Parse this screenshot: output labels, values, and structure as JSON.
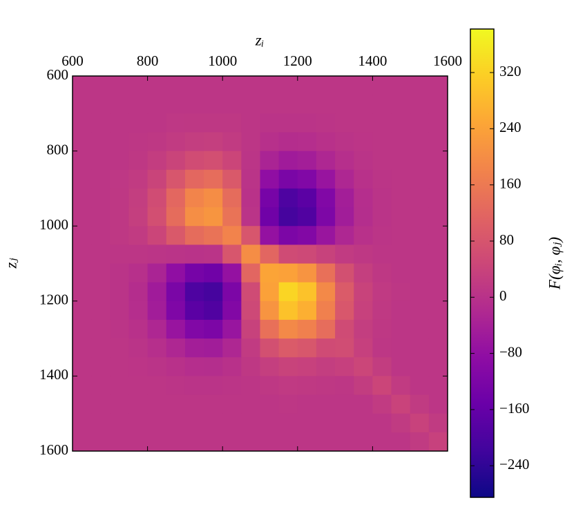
{
  "chart_data": {
    "type": "heatmap",
    "xlabel": "zᵢ",
    "ylabel": "zⱼ",
    "colorbar_label": "F(φᵢ, φⱼ)",
    "colormap": "plasma",
    "xlim": [
      600,
      1600
    ],
    "ylim": [
      1600,
      600
    ],
    "xticks": [
      600,
      800,
      1000,
      1200,
      1400,
      1600
    ],
    "yticks": [
      600,
      800,
      1000,
      1200,
      1400,
      1600
    ],
    "clim": [
      -285,
      382
    ],
    "cticks": [
      {
        "value": -240,
        "label": "−240"
      },
      {
        "value": -160,
        "label": "−160"
      },
      {
        "value": -80,
        "label": "−80"
      },
      0,
      80,
      160,
      240,
      320
    ],
    "z": [
      [
        10,
        10,
        10,
        10,
        10,
        10,
        10,
        10,
        10,
        10,
        10,
        10,
        10,
        10,
        10,
        10,
        10,
        10,
        10,
        10
      ],
      [
        10,
        10,
        10,
        10,
        10,
        10,
        10,
        10,
        10,
        10,
        10,
        10,
        10,
        10,
        10,
        10,
        10,
        10,
        10,
        10
      ],
      [
        10,
        10,
        10,
        10,
        10,
        13,
        14,
        15,
        14,
        10,
        5,
        4,
        5,
        7,
        10,
        10,
        10,
        10,
        10,
        10
      ],
      [
        10,
        10,
        10,
        12,
        15,
        22,
        27,
        29,
        22,
        10,
        -4,
        -11,
        -9,
        -2,
        4,
        8,
        10,
        10,
        10,
        10
      ],
      [
        10,
        10,
        10,
        15,
        26,
        42,
        61,
        66,
        45,
        7,
        -31,
        -52,
        -46,
        -25,
        -7,
        4,
        9,
        10,
        10,
        10
      ],
      [
        10,
        10,
        13,
        22,
        42,
        82,
        122,
        133,
        90,
        4,
        -82,
        -123,
        -111,
        -68,
        -25,
        -2,
        7,
        10,
        10,
        10
      ],
      [
        10,
        10,
        14,
        27,
        61,
        122,
        182,
        200,
        132,
        1,
        -129,
        -197,
        -176,
        -110,
        -45,
        -9,
        5,
        10,
        10,
        10
      ],
      [
        10,
        10,
        15,
        29,
        66,
        132,
        201,
        216,
        147,
        4,
        -141,
        -210,
        -192,
        -118,
        -49,
        -10,
        4,
        9,
        10,
        10
      ],
      [
        10,
        10,
        14,
        22,
        45,
        90,
        132,
        147,
        180,
        83,
        -76,
        -120,
        -108,
        -66,
        -25,
        -1,
        7,
        9,
        10,
        10
      ],
      [
        10,
        10,
        10,
        10,
        7,
        4,
        2,
        4,
        83,
        200,
        119,
        57,
        52,
        36,
        22,
        15,
        10,
        10,
        10,
        10
      ],
      [
        10,
        10,
        5,
        -4,
        -31,
        -82,
        -130,
        -141,
        -76,
        119,
        245,
        239,
        213,
        141,
        69,
        29,
        15,
        10,
        10,
        10
      ],
      [
        10,
        10,
        4,
        -11,
        -52,
        -123,
        -197,
        -210,
        -120,
        57,
        239,
        326,
        295,
        191,
        94,
        39,
        18,
        11,
        10,
        10
      ],
      [
        10,
        10,
        5,
        -9,
        -47,
        -114,
        -176,
        -192,
        -108,
        52,
        213,
        295,
        263,
        173,
        86,
        35,
        17,
        10,
        10,
        10
      ],
      [
        10,
        10,
        7,
        -2,
        -25,
        -68,
        -110,
        -119,
        -67,
        36,
        141,
        191,
        173,
        134,
        57,
        27,
        14,
        10,
        10,
        10
      ],
      [
        10,
        10,
        10,
        4,
        -7,
        -25,
        -45,
        -49,
        -25,
        22,
        69,
        94,
        85,
        57,
        62,
        33,
        12,
        10,
        10,
        10
      ],
      [
        10,
        10,
        10,
        8,
        4,
        -2,
        -9,
        -10,
        -1,
        15,
        29,
        39,
        35,
        27,
        33,
        47,
        25,
        10,
        10,
        10
      ],
      [
        10,
        10,
        10,
        10,
        9,
        7,
        5,
        4,
        7,
        10,
        15,
        18,
        17,
        14,
        12,
        25,
        45,
        22,
        10,
        10
      ],
      [
        10,
        10,
        10,
        10,
        10,
        10,
        10,
        9,
        9,
        10,
        10,
        11,
        10,
        10,
        10,
        10,
        22,
        40,
        20,
        10
      ],
      [
        10,
        10,
        10,
        10,
        10,
        10,
        10,
        10,
        10,
        10,
        10,
        10,
        10,
        10,
        10,
        10,
        10,
        20,
        38,
        20
      ],
      [
        10,
        10,
        10,
        10,
        10,
        10,
        10,
        10,
        10,
        10,
        10,
        10,
        10,
        10,
        10,
        10,
        10,
        10,
        20,
        35
      ]
    ]
  }
}
